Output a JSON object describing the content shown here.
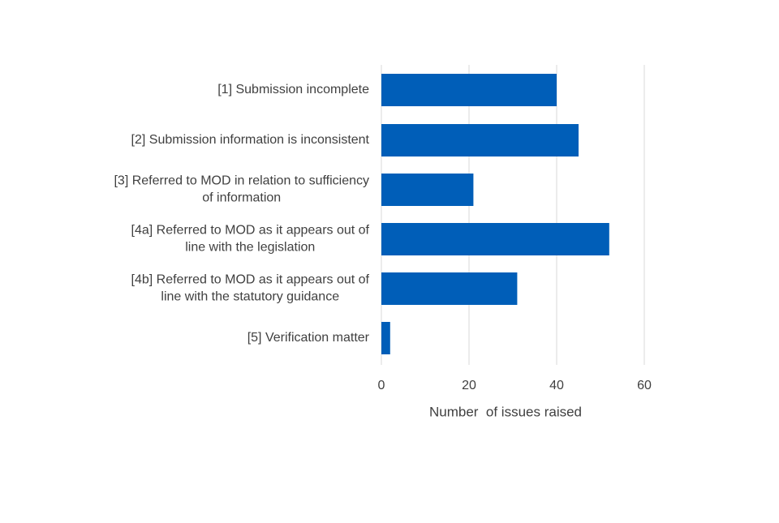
{
  "chart_data": {
    "type": "bar",
    "orientation": "horizontal",
    "categories": [
      [
        "[1] Submission incomplete"
      ],
      [
        "[2] Submission information is inconsistent"
      ],
      [
        "[3] Referred to MOD in relation to sufficiency",
        "of information"
      ],
      [
        "[4a] Referred to MOD as it appears out of",
        "line with the legislation"
      ],
      [
        "[4b] Referred to MOD as it appears out of",
        "line with the statutory guidance"
      ],
      [
        "[5] Verification matter"
      ]
    ],
    "values": [
      40,
      45,
      21,
      52,
      31,
      2
    ],
    "xlabel": "Number  of issues raised",
    "ylabel": "",
    "xlim": [
      0,
      60
    ],
    "xticks": [
      0,
      20,
      40,
      60
    ],
    "grid": "vertical",
    "legend": "none",
    "colors": {
      "bar": "#005EB8",
      "grid": "#d9d9d9",
      "text": "#404040"
    }
  }
}
